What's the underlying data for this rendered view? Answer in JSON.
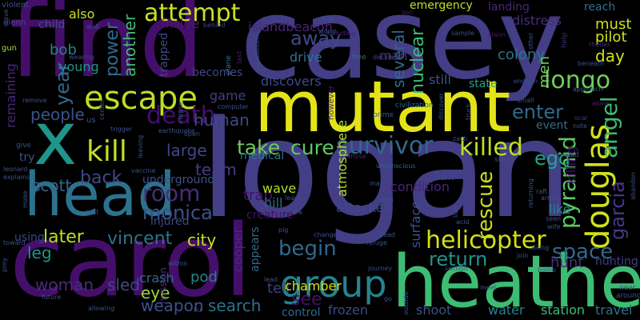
{
  "words": [
    {
      "text": "casey",
      "color": "#433e85"
    },
    {
      "text": "find",
      "color": "#440f6a"
    },
    {
      "text": "mutant",
      "color": "#e3e418"
    },
    {
      "text": "logan",
      "color": "#433e85"
    },
    {
      "text": "x",
      "color": "#1f958b"
    },
    {
      "text": "head",
      "color": "#2c728e"
    },
    {
      "text": "carol",
      "color": "#440f6a"
    },
    {
      "text": "heather",
      "color": "#3dbc74"
    },
    {
      "text": "escape",
      "color": "#bddf26"
    },
    {
      "text": "kill",
      "color": "#bddf26"
    },
    {
      "text": "group",
      "color": "#26828e"
    },
    {
      "text": "douglas",
      "color": "#d0e11c"
    },
    {
      "text": "helicopter",
      "color": "#d0e11c"
    },
    {
      "text": "survivor",
      "color": "#31688e"
    },
    {
      "text": "attempt",
      "color": "#c8e020"
    },
    {
      "text": "death",
      "color": "#440f6a"
    },
    {
      "text": "take",
      "color": "#6ece58"
    },
    {
      "text": "cure",
      "color": "#5cc863"
    },
    {
      "text": "killed",
      "color": "#bddf26"
    },
    {
      "text": "longo",
      "color": "#6ece58"
    },
    {
      "text": "pyramid",
      "color": "#5cc863"
    },
    {
      "text": "rescue",
      "color": "#c8e020"
    },
    {
      "text": "room",
      "color": "#472d7b"
    },
    {
      "text": "monica",
      "color": "#3b528b"
    },
    {
      "text": "begin",
      "color": "#31688e"
    },
    {
      "text": "return",
      "color": "#1f958b"
    },
    {
      "text": "space",
      "color": "#31688e"
    },
    {
      "text": "angel",
      "color": "#3dbc74"
    },
    {
      "text": "garcia",
      "color": "#443983"
    },
    {
      "text": "enter",
      "color": "#31688e"
    },
    {
      "text": "egg",
      "color": "#21a685"
    },
    {
      "text": "away",
      "color": "#3e4989"
    },
    {
      "text": "nuclear",
      "color": "#3dbc74"
    },
    {
      "text": "several",
      "color": "#31688e"
    },
    {
      "text": "power",
      "color": "#31688e"
    },
    {
      "text": "another",
      "color": "#3dbc74"
    },
    {
      "text": "year",
      "color": "#31688e"
    },
    {
      "text": "people",
      "color": "#3b528b"
    },
    {
      "text": "human",
      "color": "#3e4989"
    },
    {
      "text": "back",
      "color": "#3e4989"
    },
    {
      "text": "team",
      "color": "#433e85"
    },
    {
      "text": "large",
      "color": "#404688"
    },
    {
      "text": "scott",
      "color": "#31688e"
    },
    {
      "text": "vincent",
      "color": "#2c728e"
    },
    {
      "text": "later",
      "color": "#bddf26"
    },
    {
      "text": "leg",
      "color": "#1f958b"
    },
    {
      "text": "woman",
      "color": "#472d7b"
    },
    {
      "text": "sled",
      "color": "#3e4989"
    },
    {
      "text": "eye",
      "color": "#9bd93c"
    },
    {
      "text": "weapon",
      "color": "#3b528b"
    },
    {
      "text": "crash",
      "color": "#31688e"
    },
    {
      "text": "pod",
      "color": "#26828e"
    },
    {
      "text": "search",
      "color": "#2c728e"
    },
    {
      "text": "see",
      "color": "#440f6a"
    },
    {
      "text": "tell",
      "color": "#433e85"
    },
    {
      "text": "chamber",
      "color": "#d0e11c"
    },
    {
      "text": "frozen",
      "color": "#3e4989"
    },
    {
      "text": "shoot",
      "color": "#3b528b"
    },
    {
      "text": "water",
      "color": "#26828e"
    },
    {
      "text": "station",
      "color": "#3dbc74"
    },
    {
      "text": "travel",
      "color": "#2c728e"
    },
    {
      "text": "hunt",
      "color": "#472d7b"
    },
    {
      "text": "hunting",
      "color": "#433e85"
    },
    {
      "text": "city",
      "color": "#c8e020"
    },
    {
      "text": "bob",
      "color": "#26828e"
    },
    {
      "text": "young",
      "color": "#1f958b"
    },
    {
      "text": "remaining",
      "color": "#482677"
    },
    {
      "text": "day",
      "color": "#d0e11c"
    },
    {
      "text": "must",
      "color": "#d0e11c"
    },
    {
      "text": "pilot",
      "color": "#d0e11c"
    },
    {
      "text": "colony",
      "color": "#2c728e"
    },
    {
      "text": "men",
      "color": "#6ece58"
    },
    {
      "text": "distress",
      "color": "#472d7b"
    },
    {
      "text": "reach",
      "color": "#2c728e"
    },
    {
      "text": "emergency",
      "color": "#bddf26"
    },
    {
      "text": "islandbeacon",
      "color": "#482677"
    },
    {
      "text": "inside",
      "color": "#481a6c"
    },
    {
      "text": "also",
      "color": "#c8e020"
    },
    {
      "text": "child",
      "color": "#3b528b"
    },
    {
      "text": "game",
      "color": "#433e85"
    },
    {
      "text": "drive",
      "color": "#2c728e"
    },
    {
      "text": "man",
      "color": "#472d7b"
    },
    {
      "text": "discovers",
      "color": "#3e4989"
    },
    {
      "text": "still",
      "color": "#3b528b"
    },
    {
      "text": "state",
      "color": "#21a685"
    },
    {
      "text": "landing",
      "color": "#482677"
    },
    {
      "text": "trapped",
      "color": "#404688"
    },
    {
      "text": "becomes",
      "color": "#404688"
    },
    {
      "text": "underground",
      "color": "#3b528b"
    },
    {
      "text": "injured",
      "color": "#3e4989"
    },
    {
      "text": "trap",
      "color": "#440f6a"
    },
    {
      "text": "condition",
      "color": "#482677"
    },
    {
      "text": "wave",
      "color": "#b5de2b"
    },
    {
      "text": "hill",
      "color": "#31688e"
    },
    {
      "text": "attacked",
      "color": "#3e4989"
    },
    {
      "text": "creature",
      "color": "#440f6a"
    },
    {
      "text": "atmosphere",
      "color": "#b5de2b"
    },
    {
      "text": "surface",
      "color": "#3b528b"
    },
    {
      "text": "killing",
      "color": "#440f6a"
    },
    {
      "text": "like",
      "color": "#26828e"
    },
    {
      "text": "fall",
      "color": "#3e4989"
    },
    {
      "text": "cooper",
      "color": "#472d7b"
    },
    {
      "text": "appears",
      "color": "#31688e"
    },
    {
      "text": "control",
      "color": "#31688e"
    },
    {
      "text": "event",
      "color": "#31688e"
    },
    {
      "text": "using",
      "color": "#404688"
    },
    {
      "text": "medical",
      "color": "#2c728e"
    },
    {
      "text": "mission",
      "color": "#472d7b"
    },
    {
      "text": "violent",
      "color": "#3b528b"
    },
    {
      "text": "glenn",
      "color": "#404688"
    },
    {
      "text": "gun",
      "color": "#a0da39"
    },
    {
      "text": "wall",
      "color": "#3b528b"
    },
    {
      "text": "behind",
      "color": "#404688"
    },
    {
      "text": "plane",
      "color": "#2c728e"
    },
    {
      "text": "last",
      "color": "#481a6c"
    },
    {
      "text": "population",
      "color": "#3b528b"
    },
    {
      "text": "wearing",
      "color": "#3e4989"
    },
    {
      "text": "including",
      "color": "#482677"
    },
    {
      "text": "free",
      "color": "#2c728e"
    },
    {
      "text": "stop",
      "color": "#3b528b"
    },
    {
      "text": "son",
      "color": "#481a6c"
    },
    {
      "text": "sample",
      "color": "#3b528b"
    },
    {
      "text": "claim",
      "color": "#481a6c"
    },
    {
      "text": "help",
      "color": "#472d7b"
    },
    {
      "text": "rhodes",
      "color": "#472d7b"
    },
    {
      "text": "beneath",
      "color": "#3b528b"
    },
    {
      "text": "approach",
      "color": "#31688e"
    },
    {
      "text": "alone",
      "color": "#482677"
    },
    {
      "text": "scar",
      "color": "#443983"
    },
    {
      "text": "note",
      "color": "#3b528b"
    },
    {
      "text": "small",
      "color": "#3b528b"
    },
    {
      "text": "enough",
      "color": "#3e4989"
    },
    {
      "text": "however",
      "color": "#482677"
    },
    {
      "text": "decides",
      "color": "#404688"
    },
    {
      "text": "civilization",
      "color": "#31688e"
    },
    {
      "text": "prime",
      "color": "#3b528b"
    },
    {
      "text": "zach",
      "color": "#404688"
    },
    {
      "text": "truck",
      "color": "#3e4989"
    },
    {
      "text": "whose",
      "color": "#482677"
    },
    {
      "text": "unconscious",
      "color": "#31688e"
    },
    {
      "text": "computer",
      "color": "#3b528b"
    },
    {
      "text": "earthquake",
      "color": "#3b528b"
    },
    {
      "text": "remove",
      "color": "#3b528b"
    },
    {
      "text": "us",
      "color": "#3b528b"
    },
    {
      "text": "center",
      "color": "#3b528b"
    },
    {
      "text": "trigger",
      "color": "#3b528b"
    },
    {
      "text": "corpse",
      "color": "#3b528b"
    },
    {
      "text": "open",
      "color": "#3b528b"
    },
    {
      "text": "give",
      "color": "#3b528b"
    },
    {
      "text": "try",
      "color": "#3b528b"
    },
    {
      "text": "leonard",
      "color": "#3b528b"
    },
    {
      "text": "explains",
      "color": "#3b528b"
    },
    {
      "text": "vaccine",
      "color": "#3b528b"
    },
    {
      "text": "test",
      "color": "#3b528b"
    },
    {
      "text": "make",
      "color": "#3b528b"
    },
    {
      "text": "toward",
      "color": "#3b528b"
    },
    {
      "text": "leaving",
      "color": "#3b528b"
    },
    {
      "text": "may",
      "color": "#3b528b"
    },
    {
      "text": "area",
      "color": "#3b528b"
    },
    {
      "text": "leave",
      "color": "#3b528b"
    },
    {
      "text": "life",
      "color": "#3b528b"
    },
    {
      "text": "change",
      "color": "#3b528b"
    },
    {
      "text": "dead",
      "color": "#3b528b"
    },
    {
      "text": "refuge",
      "color": "#3b528b"
    },
    {
      "text": "live",
      "color": "#3b528b"
    },
    {
      "text": "acid",
      "color": "#3b528b"
    },
    {
      "text": "silent",
      "color": "#3b528b"
    },
    {
      "text": "raft",
      "color": "#3b528b"
    },
    {
      "text": "arrive",
      "color": "#3b528b"
    },
    {
      "text": "returning",
      "color": "#3b528b"
    },
    {
      "text": "seen",
      "color": "#3b528b"
    },
    {
      "text": "wife",
      "color": "#3b528b"
    },
    {
      "text": "united",
      "color": "#3b528b"
    },
    {
      "text": "abandon",
      "color": "#3b528b"
    },
    {
      "text": "along",
      "color": "#3b528b"
    },
    {
      "text": "join",
      "color": "#3b528b"
    },
    {
      "text": "bomb",
      "color": "#3b528b"
    },
    {
      "text": "near",
      "color": "#3b528b"
    },
    {
      "text": "around",
      "color": "#3b528b"
    },
    {
      "text": "meet",
      "color": "#3b528b"
    },
    {
      "text": "outside",
      "color": "#3b528b"
    },
    {
      "text": "section",
      "color": "#3b528b"
    },
    {
      "text": "journey",
      "color": "#3b528b"
    },
    {
      "text": "lead",
      "color": "#3b528b"
    },
    {
      "text": "within",
      "color": "#3b528b"
    },
    {
      "text": "future",
      "color": "#3b528b"
    },
    {
      "text": "allowing",
      "color": "#3b528b"
    },
    {
      "text": "liu",
      "color": "#3b528b"
    },
    {
      "text": "prey",
      "color": "#3b528b"
    },
    {
      "text": "save",
      "color": "#3b528b"
    },
    {
      "text": "go",
      "color": "#3b528b"
    },
    {
      "text": "pig",
      "color": "#3b528b"
    },
    {
      "text": "world",
      "color": "#3b528b"
    },
    {
      "text": "discover",
      "color": "#3b528b"
    },
    {
      "text": "other",
      "color": "#3b528b"
    }
  ]
}
